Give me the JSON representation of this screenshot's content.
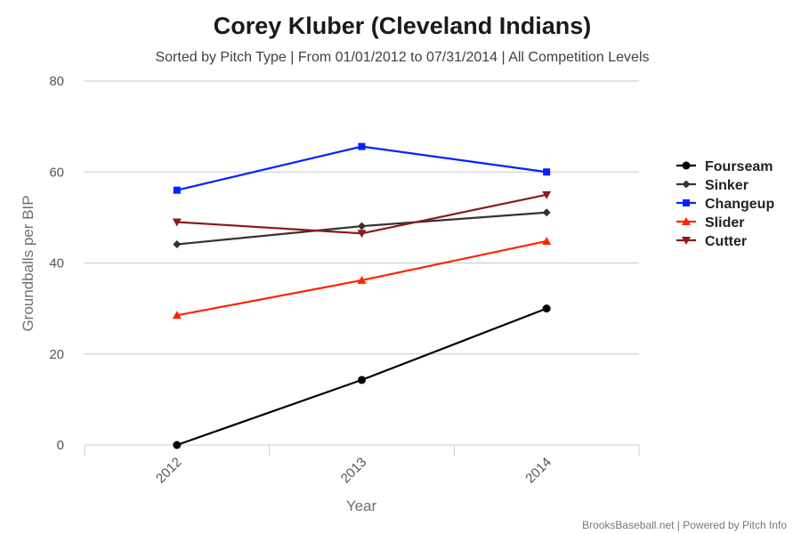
{
  "chart_data": {
    "type": "line",
    "title": "Corey Kluber (Cleveland Indians)",
    "subtitle": "Sorted by Pitch Type | From 01/01/2012 to 07/31/2014 | All Competition Levels",
    "xlabel": "Year",
    "ylabel": "Groundballs per BIP",
    "categories": [
      "2012",
      "2013",
      "2014"
    ],
    "ylim": [
      0,
      80
    ],
    "yticks": [
      0,
      20,
      40,
      60,
      80
    ],
    "grid": true,
    "legend_position": "right",
    "series": [
      {
        "name": "Fourseam",
        "values": [
          0,
          14.3,
          30
        ],
        "color": "#000000",
        "marker": "circle"
      },
      {
        "name": "Sinker",
        "values": [
          44.1,
          48.1,
          51.1
        ],
        "color": "#333333",
        "marker": "diamond"
      },
      {
        "name": "Changeup",
        "values": [
          56,
          65.6,
          60
        ],
        "color": "#0022ff",
        "marker": "square"
      },
      {
        "name": "Slider",
        "values": [
          28.5,
          36.2,
          44.8
        ],
        "color": "#ff2200",
        "marker": "triangle"
      },
      {
        "name": "Cutter",
        "values": [
          49,
          46.5,
          55
        ],
        "color": "#8b1a1a",
        "marker": "triangle-down"
      }
    ],
    "credit": "BrooksBaseball.net | Powered by Pitch Info"
  }
}
